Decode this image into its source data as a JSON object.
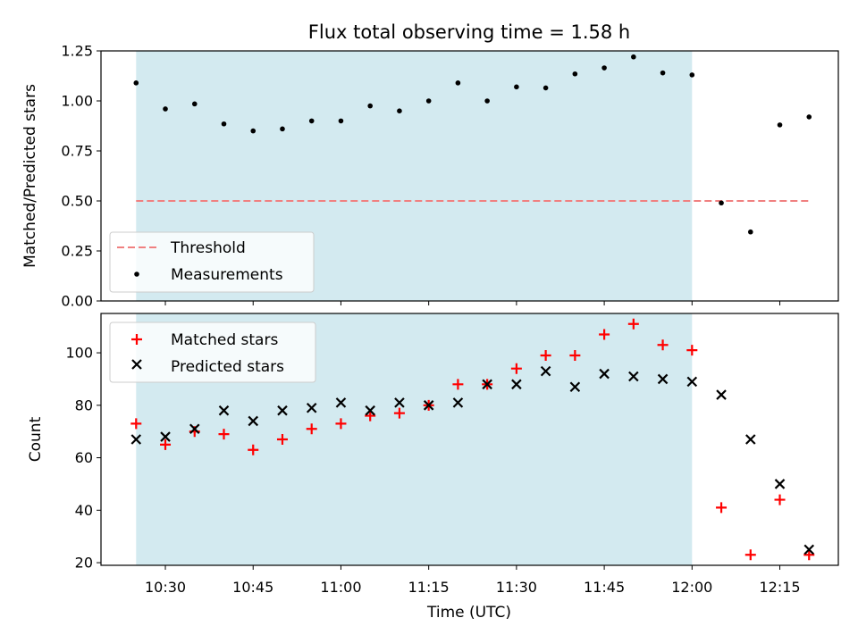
{
  "chart_data": [
    {
      "type": "scatter",
      "title": "Flux total observing time = 1.58 h",
      "xlabel": "",
      "ylabel": "Matched/Predicted stars",
      "xlim": [
        "10:19",
        "12:25"
      ],
      "ylim": [
        0,
        1.25
      ],
      "yticks": [
        "0.00",
        "0.25",
        "0.50",
        "0.75",
        "1.00",
        "1.25"
      ],
      "shaded_interval": {
        "from": "10:25",
        "to": "12:00",
        "color": "#d3eaf0"
      },
      "series": [
        {
          "name": "Threshold",
          "kind": "dashed-line",
          "color": "#f08080",
          "x": [
            "10:25",
            "12:20"
          ],
          "y": [
            0.5,
            0.5
          ]
        },
        {
          "name": "Measurements",
          "kind": "dots",
          "color": "#000000",
          "x": [
            "10:25",
            "10:30",
            "10:35",
            "10:40",
            "10:45",
            "10:50",
            "10:55",
            "11:00",
            "11:05",
            "11:10",
            "11:15",
            "11:20",
            "11:25",
            "11:30",
            "11:35",
            "11:40",
            "11:45",
            "11:50",
            "11:55",
            "12:00",
            "12:05",
            "12:10",
            "12:15",
            "12:20"
          ],
          "y": [
            1.09,
            0.96,
            0.985,
            0.885,
            0.85,
            0.86,
            0.9,
            0.9,
            0.975,
            0.95,
            1.0,
            1.09,
            1.0,
            1.07,
            1.065,
            1.135,
            1.165,
            1.22,
            1.14,
            1.13,
            0.49,
            0.345,
            0.88,
            0.92
          ]
        }
      ],
      "legend": {
        "placement": "lower-left",
        "entries": [
          "Threshold",
          "Measurements"
        ]
      },
      "grid": false
    },
    {
      "type": "scatter",
      "title": "",
      "xlabel": "Time (UTC)",
      "ylabel": "Count",
      "xlim": [
        "10:19",
        "12:25"
      ],
      "ylim": [
        19,
        115
      ],
      "yticks": [
        "20",
        "40",
        "60",
        "80",
        "100"
      ],
      "xticks": [
        "10:30",
        "10:45",
        "11:00",
        "11:15",
        "11:30",
        "11:45",
        "12:00",
        "12:15"
      ],
      "shaded_interval": {
        "from": "10:25",
        "to": "12:00",
        "color": "#d3eaf0"
      },
      "series": [
        {
          "name": "Matched stars",
          "kind": "plus",
          "color": "#ff0000",
          "x": [
            "10:25",
            "10:30",
            "10:35",
            "10:40",
            "10:45",
            "10:50",
            "10:55",
            "11:00",
            "11:05",
            "11:10",
            "11:15",
            "11:20",
            "11:25",
            "11:30",
            "11:35",
            "11:40",
            "11:45",
            "11:50",
            "11:55",
            "12:00",
            "12:05",
            "12:10",
            "12:15",
            "12:20"
          ],
          "y": [
            73,
            65,
            70,
            69,
            63,
            67,
            71,
            73,
            76,
            77,
            80,
            88,
            88,
            94,
            99,
            99,
            107,
            111,
            103,
            101,
            41,
            23,
            44,
            23
          ]
        },
        {
          "name": "Predicted stars",
          "kind": "x",
          "color": "#000000",
          "x": [
            "10:25",
            "10:30",
            "10:35",
            "10:40",
            "10:45",
            "10:50",
            "10:55",
            "11:00",
            "11:05",
            "11:10",
            "11:15",
            "11:20",
            "11:25",
            "11:30",
            "11:35",
            "11:40",
            "11:45",
            "11:50",
            "11:55",
            "12:00",
            "12:05",
            "12:10",
            "12:15",
            "12:20"
          ],
          "y": [
            67,
            68,
            71,
            78,
            74,
            78,
            79,
            81,
            78,
            81,
            80,
            81,
            88,
            88,
            93,
            87,
            92,
            91,
            90,
            89,
            84,
            67,
            50,
            25
          ]
        }
      ],
      "legend": {
        "placement": "upper-left",
        "entries": [
          "Matched stars",
          "Predicted stars"
        ]
      },
      "grid": false
    }
  ]
}
